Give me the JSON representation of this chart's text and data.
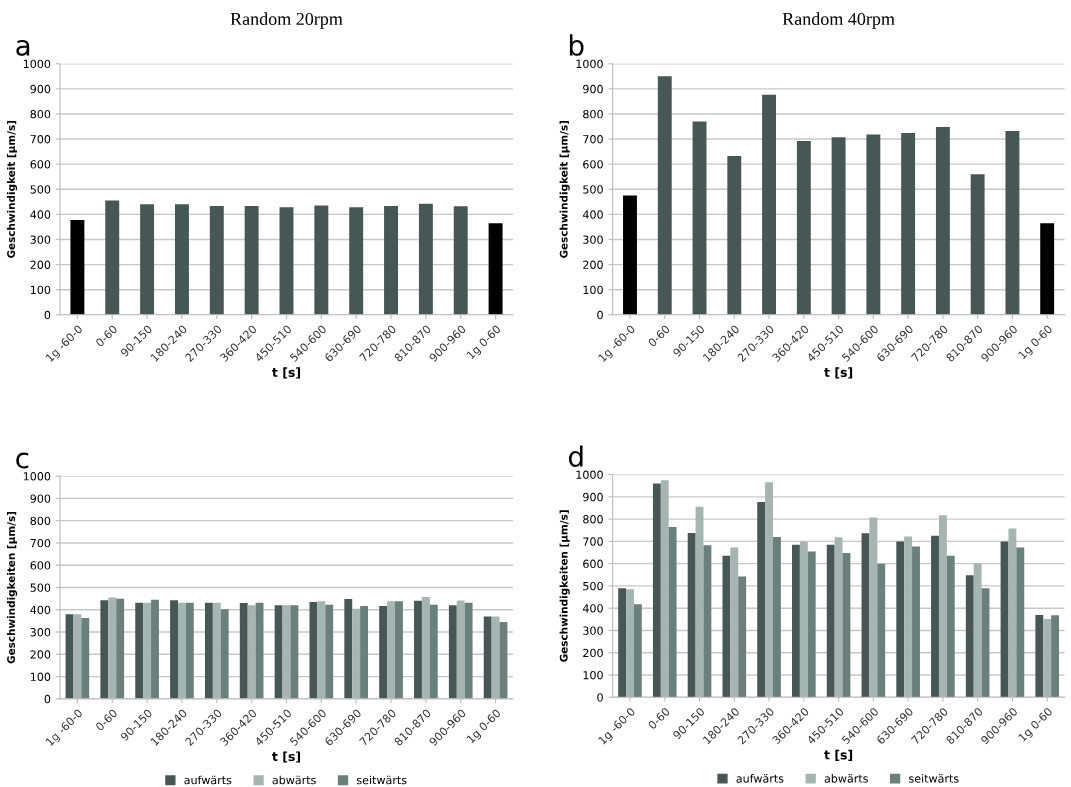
{
  "chart_data": [
    {
      "type": "bar",
      "title": "Random 20rpm",
      "annotations": [
        "a"
      ],
      "xlabel": "t [s]",
      "ylabel": "Geschwindigkeit [µm/s]",
      "categories": [
        "1g -60-0",
        "0-60",
        "90-150",
        "180-240",
        "270-330",
        "360-420",
        "450-510",
        "540-600",
        "630-690",
        "720-780",
        "810-870",
        "900-960",
        "1g 0-60"
      ],
      "values": [
        378,
        455,
        440,
        440,
        433,
        433,
        428,
        435,
        428,
        433,
        442,
        432,
        365
      ],
      "colors": [
        "#000000",
        "#475756",
        "#475756",
        "#475756",
        "#475756",
        "#475756",
        "#475756",
        "#475756",
        "#475756",
        "#475756",
        "#475756",
        "#475756",
        "#000000"
      ],
      "ylim": [
        0,
        1000
      ],
      "yticks": [
        0,
        100,
        200,
        300,
        400,
        500,
        600,
        700,
        800,
        900,
        1000
      ],
      "grid": "y"
    },
    {
      "type": "bar",
      "title": "Random 40rpm",
      "annotations": [
        "b"
      ],
      "xlabel": "t [s]",
      "ylabel": "Geschwindigkeit [µm/s]",
      "categories": [
        "1g -60-0",
        "0-60",
        "90-150",
        "180-240",
        "270-330",
        "360-420",
        "450-510",
        "540-600",
        "630-690",
        "720-780",
        "810-870",
        "900-960",
        "1g 0-60"
      ],
      "values": [
        475,
        950,
        770,
        633,
        877,
        692,
        707,
        718,
        724,
        748,
        560,
        732,
        365
      ],
      "colors": [
        "#000000",
        "#475756",
        "#475756",
        "#475756",
        "#475756",
        "#475756",
        "#475756",
        "#475756",
        "#475756",
        "#475756",
        "#475756",
        "#475756",
        "#000000"
      ],
      "ylim": [
        0,
        1000
      ],
      "yticks": [
        0,
        100,
        200,
        300,
        400,
        500,
        600,
        700,
        800,
        900,
        1000
      ],
      "grid": "y"
    },
    {
      "type": "bar",
      "annotations": [
        "c"
      ],
      "xlabel": "t [s]",
      "ylabel": "Geschwindigkeiten [µm/s]",
      "categories": [
        "1g -60-0",
        "0-60",
        "90-150",
        "180-240",
        "270-330",
        "360-420",
        "450-510",
        "540-600",
        "630-690",
        "720-780",
        "810-870",
        "900-960",
        "1g 0-60"
      ],
      "series": [
        {
          "name": "aufwärts",
          "color": "#475756",
          "values": [
            380,
            443,
            432,
            443,
            432,
            430,
            420,
            435,
            448,
            417,
            440,
            420,
            370
          ]
        },
        {
          "name": "abwärts",
          "color": "#a5b5b2",
          "values": [
            380,
            455,
            432,
            432,
            432,
            420,
            420,
            438,
            405,
            438,
            457,
            442,
            370
          ]
        },
        {
          "name": "seitwärts",
          "color": "#6b7f7c",
          "values": [
            363,
            450,
            445,
            432,
            402,
            432,
            420,
            422,
            417,
            438,
            422,
            432,
            345
          ]
        }
      ],
      "ylim": [
        0,
        1000
      ],
      "yticks": [
        0,
        100,
        200,
        300,
        400,
        500,
        600,
        700,
        800,
        900,
        1000
      ],
      "grid": "y",
      "legend": "bottom"
    },
    {
      "type": "bar",
      "annotations": [
        "d"
      ],
      "xlabel": "t [s]",
      "ylabel": "Geschwindigkeiten [µm/s]",
      "categories": [
        "1g -60-0",
        "0-60",
        "90-150",
        "180-240",
        "270-330",
        "360-420",
        "450-510",
        "540-600",
        "630-690",
        "720-780",
        "810-870",
        "900-960",
        "1g 0-60"
      ],
      "series": [
        {
          "name": "aufwärts",
          "color": "#475756",
          "values": [
            490,
            960,
            738,
            635,
            877,
            685,
            685,
            737,
            700,
            725,
            548,
            700,
            370
          ]
        },
        {
          "name": "abwärts",
          "color": "#a5b5b2",
          "values": [
            485,
            975,
            855,
            673,
            965,
            700,
            718,
            807,
            722,
            817,
            600,
            758,
            352
          ]
        },
        {
          "name": "seitwärts",
          "color": "#6b7f7c",
          "values": [
            418,
            765,
            683,
            542,
            720,
            655,
            648,
            600,
            677,
            635,
            490,
            672,
            368
          ]
        }
      ],
      "ylim": [
        0,
        1000
      ],
      "yticks": [
        0,
        100,
        200,
        300,
        400,
        500,
        600,
        700,
        800,
        900,
        1000
      ],
      "grid": "y",
      "legend": "bottom"
    }
  ]
}
